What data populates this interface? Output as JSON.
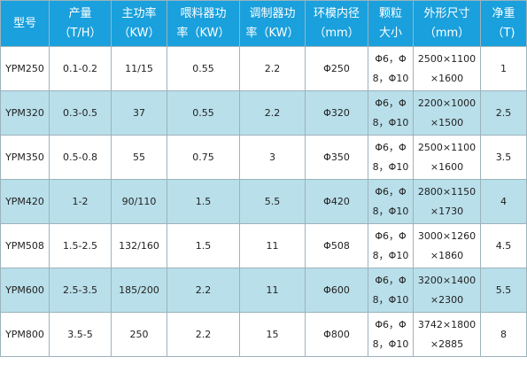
{
  "table": {
    "header": [
      [
        "型号"
      ],
      [
        "产量",
        "（T/H）"
      ],
      [
        "主功率",
        "（KW）"
      ],
      [
        "喂料器功",
        "率（KW）"
      ],
      [
        "调制器功",
        "率（KW）"
      ],
      [
        "环模内径",
        "（mm）"
      ],
      [
        "颗粒",
        "大小"
      ],
      [
        "外形尺寸",
        "（mm）"
      ],
      [
        "净重",
        "（T)"
      ]
    ],
    "rows": [
      [
        "YPM250",
        "0.1-0.2",
        "11/15",
        "0.55",
        "2.2",
        "Φ250",
        [
          "Φ6，Φ",
          "8，Φ10"
        ],
        [
          "2500×1100",
          "×1600"
        ],
        "1"
      ],
      [
        "YPM320",
        "0.3-0.5",
        "37",
        "0.55",
        "2.2",
        "Φ320",
        [
          "Φ6，Φ",
          "8，Φ10"
        ],
        [
          "2200×1000",
          "×1500"
        ],
        "2.5"
      ],
      [
        "YPM350",
        "0.5-0.8",
        "55",
        "0.75",
        "3",
        "Φ350",
        [
          "Φ6，Φ",
          "8，Φ10"
        ],
        [
          "2500×1100",
          "×1600"
        ],
        "3.5"
      ],
      [
        "YPM420",
        "1-2",
        "90/110",
        "1.5",
        "5.5",
        "Φ420",
        [
          "Φ6，Φ",
          "8，Φ10"
        ],
        [
          "2800×1150",
          "×1730"
        ],
        "4"
      ],
      [
        "YPM508",
        "1.5-2.5",
        "132/160",
        "1.5",
        "11",
        "Φ508",
        [
          "Φ6，Φ",
          "8，Φ10"
        ],
        [
          "3000×1260",
          "×1860"
        ],
        "4.5"
      ],
      [
        "YPM600",
        "2.5-3.5",
        "185/200",
        "2.2",
        "11",
        "Φ600",
        [
          "Φ6，Φ",
          "8，Φ10"
        ],
        [
          "3200×1400",
          "×2300"
        ],
        "5.5"
      ],
      [
        "YPM800",
        "3.5-5",
        "250",
        "2.2",
        "15",
        "Φ800",
        [
          "Φ6，Φ",
          "8，Φ10"
        ],
        [
          "3742×1800",
          "×2885"
        ],
        "8"
      ]
    ]
  }
}
